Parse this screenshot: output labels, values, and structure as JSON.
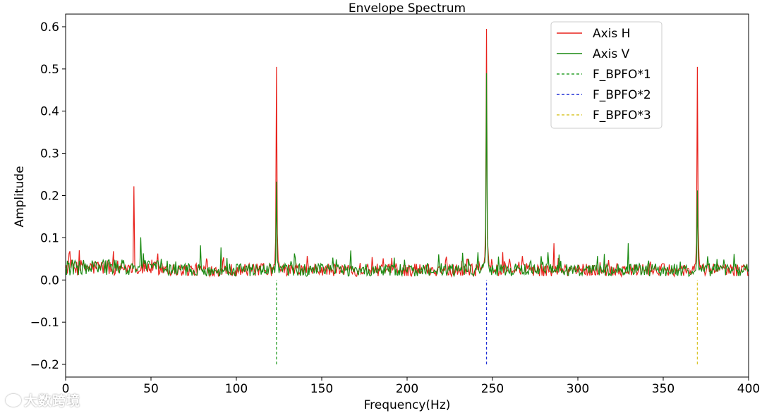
{
  "chart_data": {
    "type": "line",
    "title": "Envelope Spectrum",
    "xlabel": "Frequency(Hz)",
    "ylabel": "Amplitude",
    "xlim": [
      0,
      400
    ],
    "ylim": [
      -0.23,
      0.63
    ],
    "xticks": [
      0,
      50,
      100,
      150,
      200,
      250,
      300,
      350,
      400
    ],
    "xtick_labels": [
      "0",
      "50",
      "100",
      "150",
      "200",
      "250",
      "300",
      "350",
      "400"
    ],
    "yticks": [
      -0.2,
      -0.1,
      0.0,
      0.1,
      0.2,
      0.3,
      0.4,
      0.5,
      0.6
    ],
    "ytick_labels": [
      "−0.2",
      "−0.1",
      "0.0",
      "0.1",
      "0.2",
      "0.3",
      "0.4",
      "0.5",
      "0.6"
    ],
    "grid": false,
    "legend_position": "top-right",
    "series": [
      {
        "name": "Axis H",
        "color": "#e8211b",
        "style": "solid",
        "noise_floor": 0.025,
        "peaks": [
          {
            "x": 40,
            "y": 0.222
          },
          {
            "x": 123.5,
            "y": 0.505
          },
          {
            "x": 246.5,
            "y": 0.595
          },
          {
            "x": 286,
            "y": 0.087
          },
          {
            "x": 370,
            "y": 0.505
          }
        ]
      },
      {
        "name": "Axis V",
        "color": "#1a8a12",
        "style": "solid",
        "noise_floor": 0.025,
        "peaks": [
          {
            "x": 44,
            "y": 0.101
          },
          {
            "x": 79,
            "y": 0.082
          },
          {
            "x": 91,
            "y": 0.077
          },
          {
            "x": 123.5,
            "y": 0.233
          },
          {
            "x": 167,
            "y": 0.07
          },
          {
            "x": 246.5,
            "y": 0.49
          },
          {
            "x": 289,
            "y": 0.06
          },
          {
            "x": 329.5,
            "y": 0.087
          },
          {
            "x": 370,
            "y": 0.212
          }
        ]
      },
      {
        "name": "F_BPFO*1",
        "color": "#2ca02c",
        "style": "dashed",
        "x": 123.5,
        "y": [
          -0.2,
          0.0
        ]
      },
      {
        "name": "F_BPFO*2",
        "color": "#1f2fd6",
        "style": "dashed",
        "x": 246.5,
        "y": [
          -0.2,
          0.0
        ]
      },
      {
        "name": "F_BPFO*3",
        "color": "#d9c52b",
        "style": "dashed",
        "x": 370,
        "y": [
          -0.2,
          0.0
        ]
      }
    ]
  },
  "watermark": {
    "text": "大数跨境"
  }
}
